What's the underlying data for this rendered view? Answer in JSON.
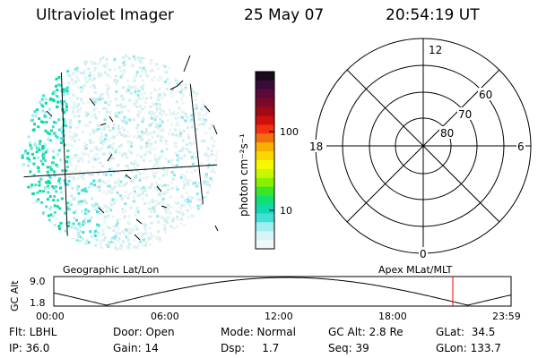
{
  "header": {
    "title": "Ultraviolet Imager",
    "date": "25 May 07",
    "time": "20:54:19 UT"
  },
  "colorbar": {
    "label": "photon cm⁻²s⁻¹",
    "ticks": [
      "100",
      "10"
    ],
    "colors": [
      "#1a0a1a",
      "#3a0a3a",
      "#5a0a3a",
      "#7a0a2a",
      "#a00a14",
      "#d0100c",
      "#f03010",
      "#f07010",
      "#f8b000",
      "#f8d800",
      "#f8f800",
      "#c8f800",
      "#88f000",
      "#38e828",
      "#10e070",
      "#10d8b0",
      "#40e0d8",
      "#a0eef0",
      "#d8f4f6",
      "#eef8f8"
    ]
  },
  "polar_grid": {
    "mlt_labels": [
      "12",
      "18",
      "6",
      "0"
    ],
    "lat_labels": [
      "60",
      "70",
      "80"
    ]
  },
  "altitude_panel": {
    "left_title": "Geographic Lat/Lon",
    "right_title": "Apex MLat/MLT",
    "y_label": "GC Alt",
    "y_ticks": [
      "9.0",
      "1.8"
    ],
    "x_ticks": [
      "00:00",
      "06:00",
      "12:00",
      "18:00",
      "23:59"
    ],
    "marker_color": "#ff0000"
  },
  "footer": {
    "row1": [
      "Flt: LBHL",
      "Door: Open",
      "Mode: Normal",
      "GC Alt: 2.8 Re",
      "GLat:  34.5"
    ],
    "row2": [
      "IP: 36.0",
      "Gain: 14",
      "Dsp:     1.7",
      "Seq: 39",
      "GLon: 133.7"
    ]
  }
}
